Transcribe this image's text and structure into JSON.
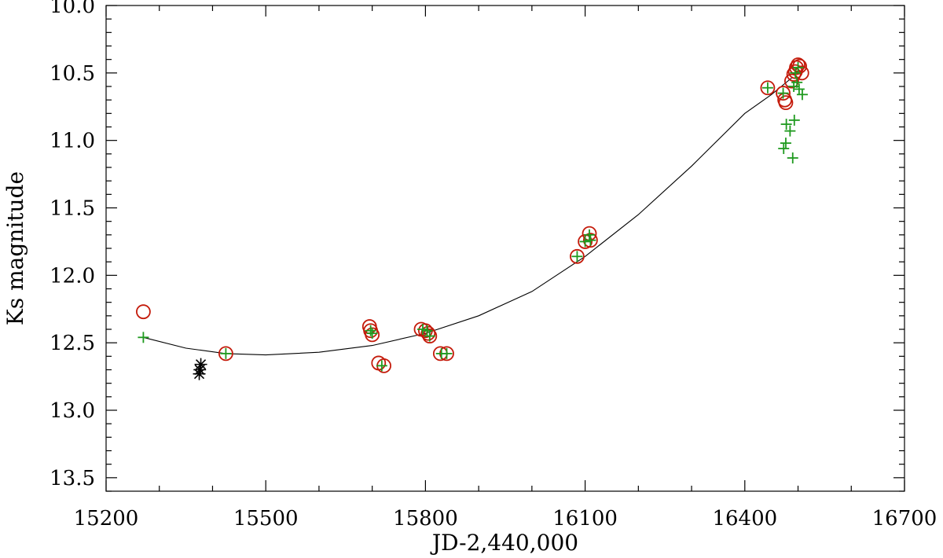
{
  "chart_data": {
    "type": "scatter",
    "xlabel": "JD-2,440,000",
    "ylabel": "Ks magnitude",
    "xlim": [
      15200,
      16700
    ],
    "ylim": [
      13.6,
      10.0
    ],
    "y_inverted": true,
    "grid": false,
    "x_major_ticks": [
      15200,
      15500,
      15800,
      16100,
      16400,
      16700
    ],
    "x_tick_labels": [
      "15200",
      "15500",
      "15800",
      "16100",
      "16400",
      "16700"
    ],
    "x_minor_step": 100,
    "y_major_ticks": [
      10.0,
      10.5,
      11.0,
      11.5,
      12.0,
      12.5,
      13.0,
      13.5
    ],
    "y_tick_labels": [
      "10.0",
      "10.5",
      "11.0",
      "11.5",
      "12.0",
      "12.5",
      "13.0",
      "13.5"
    ],
    "y_minor_step": 0.1,
    "colors": {
      "circles": "#c41a0a",
      "plus": "#1f9a1f",
      "stars": "#000000",
      "fit": "#000000"
    },
    "series": [
      {
        "marker": "circle",
        "color": "#c41a0a",
        "points": [
          [
            15270,
            12.27
          ],
          [
            15425,
            12.58
          ],
          [
            15695,
            12.38
          ],
          [
            15697,
            12.41
          ],
          [
            15700,
            12.44
          ],
          [
            15712,
            12.65
          ],
          [
            15722,
            12.67
          ],
          [
            15792,
            12.4
          ],
          [
            15800,
            12.41
          ],
          [
            15808,
            12.45
          ],
          [
            15805,
            12.43
          ],
          [
            15828,
            12.58
          ],
          [
            15840,
            12.58
          ],
          [
            16085,
            11.86
          ],
          [
            16100,
            11.75
          ],
          [
            16108,
            11.69
          ],
          [
            16110,
            11.74
          ],
          [
            16443,
            10.61
          ],
          [
            16472,
            10.65
          ],
          [
            16475,
            10.7
          ],
          [
            16477,
            10.72
          ],
          [
            16488,
            10.56
          ],
          [
            16492,
            10.51
          ],
          [
            16495,
            10.49
          ],
          [
            16497,
            10.46
          ],
          [
            16500,
            10.44
          ],
          [
            16503,
            10.45
          ],
          [
            16507,
            10.5
          ]
        ]
      },
      {
        "marker": "plus",
        "color": "#1f9a1f",
        "points": [
          [
            15270,
            12.46
          ],
          [
            15425,
            12.58
          ],
          [
            15697,
            12.41
          ],
          [
            15700,
            12.43
          ],
          [
            15718,
            12.67
          ],
          [
            15795,
            12.4
          ],
          [
            15803,
            12.41
          ],
          [
            15808,
            12.45
          ],
          [
            15830,
            12.58
          ],
          [
            15840,
            12.58
          ],
          [
            16085,
            11.86
          ],
          [
            16100,
            11.75
          ],
          [
            16108,
            11.7
          ],
          [
            16110,
            11.74
          ],
          [
            16443,
            10.61
          ],
          [
            16472,
            10.65
          ],
          [
            16473,
            11.06
          ],
          [
            16477,
            11.02
          ],
          [
            16478,
            10.88
          ],
          [
            16485,
            10.93
          ],
          [
            16490,
            11.13
          ],
          [
            16493,
            10.85
          ],
          [
            16492,
            10.6
          ],
          [
            16498,
            10.57
          ],
          [
            16502,
            10.62
          ],
          [
            16508,
            10.66
          ],
          [
            16495,
            10.5
          ],
          [
            16500,
            10.46
          ]
        ]
      },
      {
        "marker": "star",
        "color": "#000000",
        "points": [
          [
            15378,
            12.66
          ],
          [
            15376,
            12.7
          ],
          [
            15375,
            12.73
          ]
        ]
      }
    ],
    "fit_curve": {
      "type": "line",
      "points": [
        [
          15270,
          12.46
        ],
        [
          15350,
          12.54
        ],
        [
          15425,
          12.58
        ],
        [
          15500,
          12.59
        ],
        [
          15600,
          12.57
        ],
        [
          15700,
          12.52
        ],
        [
          15800,
          12.43
        ],
        [
          15900,
          12.3
        ],
        [
          16000,
          12.12
        ],
        [
          16100,
          11.86
        ],
        [
          16200,
          11.55
        ],
        [
          16300,
          11.19
        ],
        [
          16400,
          10.8
        ],
        [
          16450,
          10.66
        ],
        [
          16490,
          10.53
        ]
      ]
    }
  }
}
